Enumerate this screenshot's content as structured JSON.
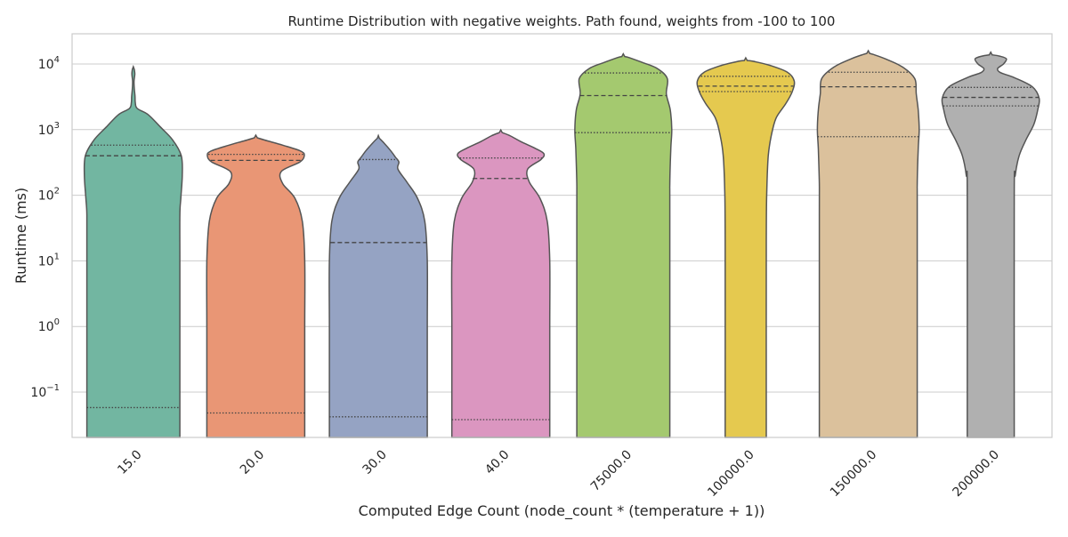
{
  "chart_data": {
    "type": "violin",
    "title": "Runtime Distribution with negative weights. Path found, weights from -100 to 100",
    "xlabel": "Computed Edge Count (node_count * (temperature + 1))",
    "ylabel": "Runtime (ms)",
    "yscale": "log",
    "ylim": [
      0.02,
      27000
    ],
    "yticks": [
      {
        "value": 0.1,
        "base": "10",
        "exp": "−1"
      },
      {
        "value": 1,
        "base": "10",
        "exp": "0"
      },
      {
        "value": 10,
        "base": "10",
        "exp": "1"
      },
      {
        "value": 100,
        "base": "10",
        "exp": "2"
      },
      {
        "value": 1000,
        "base": "10",
        "exp": "3"
      },
      {
        "value": 10000,
        "base": "10",
        "exp": "4"
      }
    ],
    "grid": true,
    "inner": "quartile",
    "categories": [
      "15.0",
      "20.0",
      "30.0",
      "40.0",
      "75000.0",
      "100000.0",
      "150000.0",
      "200000.0"
    ],
    "violins": [
      {
        "category": "15.0",
        "color": "#72b6a1",
        "quartiles": [
          0.058,
          400,
          580
        ],
        "profile": [
          [
            0.02,
            0.95
          ],
          [
            0.1,
            0.95
          ],
          [
            1,
            0.95
          ],
          [
            10,
            0.95
          ],
          [
            50,
            0.95
          ],
          [
            90,
            0.97
          ],
          [
            200,
            1.0
          ],
          [
            400,
            0.98
          ],
          [
            700,
            0.8
          ],
          [
            1100,
            0.55
          ],
          [
            1700,
            0.3
          ],
          [
            2100,
            0.08
          ],
          [
            2600,
            0.04
          ],
          [
            3200,
            0.035
          ],
          [
            4200,
            0.02
          ],
          [
            5500,
            0.015
          ],
          [
            7000,
            0.03
          ],
          [
            8300,
            0.02
          ]
        ]
      },
      {
        "category": "20.0",
        "color": "#e99675",
        "quartiles": [
          0.048,
          340,
          420
        ],
        "profile": [
          [
            0.02,
            1.0
          ],
          [
            0.1,
            1.0
          ],
          [
            1,
            1.0
          ],
          [
            10,
            1.0
          ],
          [
            40,
            0.95
          ],
          [
            90,
            0.8
          ],
          [
            150,
            0.55
          ],
          [
            230,
            0.52
          ],
          [
            320,
            0.9
          ],
          [
            400,
            0.99
          ],
          [
            470,
            0.92
          ],
          [
            580,
            0.55
          ],
          [
            670,
            0.25
          ],
          [
            750,
            0.03
          ]
        ]
      },
      {
        "category": "30.0",
        "color": "#95a3c3",
        "quartiles": [
          0.042,
          19,
          350
        ],
        "profile": [
          [
            0.02,
            1.0
          ],
          [
            0.1,
            1.0
          ],
          [
            1,
            1.0
          ],
          [
            10,
            1.0
          ],
          [
            40,
            0.95
          ],
          [
            90,
            0.8
          ],
          [
            160,
            0.58
          ],
          [
            250,
            0.4
          ],
          [
            320,
            0.42
          ],
          [
            380,
            0.35
          ],
          [
            480,
            0.25
          ],
          [
            620,
            0.12
          ],
          [
            740,
            0.02
          ]
        ]
      },
      {
        "category": "40.0",
        "color": "#db96c0",
        "quartiles": [
          0.038,
          180,
          370
        ],
        "profile": [
          [
            0.02,
            1.0
          ],
          [
            0.1,
            1.0
          ],
          [
            1,
            1.0
          ],
          [
            10,
            1.0
          ],
          [
            40,
            0.95
          ],
          [
            90,
            0.8
          ],
          [
            160,
            0.58
          ],
          [
            250,
            0.55
          ],
          [
            350,
            0.82
          ],
          [
            430,
            0.88
          ],
          [
            520,
            0.7
          ],
          [
            650,
            0.42
          ],
          [
            800,
            0.2
          ],
          [
            900,
            0.03
          ]
        ]
      },
      {
        "category": "75000.0",
        "color": "#a4c96f",
        "quartiles": [
          900,
          3300,
          7300
        ],
        "profile": [
          [
            0.02,
            0.95
          ],
          [
            50,
            0.95
          ],
          [
            150,
            0.95
          ],
          [
            500,
            0.97
          ],
          [
            1000,
            0.99
          ],
          [
            2000,
            0.96
          ],
          [
            3500,
            0.88
          ],
          [
            6000,
            0.9
          ],
          [
            8500,
            0.7
          ],
          [
            10500,
            0.4
          ],
          [
            12500,
            0.12
          ],
          [
            13000,
            0.03
          ]
        ]
      },
      {
        "category": "100000.0",
        "color": "#e5c94f",
        "quartiles": [
          3800,
          4600,
          6500
        ],
        "profile": [
          [
            0.02,
            0.42
          ],
          [
            20,
            0.42
          ],
          [
            120,
            0.43
          ],
          [
            400,
            0.46
          ],
          [
            800,
            0.52
          ],
          [
            1500,
            0.62
          ],
          [
            2500,
            0.82
          ],
          [
            3800,
            0.95
          ],
          [
            5500,
            0.99
          ],
          [
            7500,
            0.85
          ],
          [
            9500,
            0.5
          ],
          [
            11000,
            0.15
          ],
          [
            11300,
            0.03
          ]
        ]
      },
      {
        "category": "150000.0",
        "color": "#dbc19c",
        "quartiles": [
          780,
          4500,
          7500
        ],
        "profile": [
          [
            0.02,
            1.0
          ],
          [
            50,
            1.0
          ],
          [
            150,
            1.0
          ],
          [
            500,
            1.02
          ],
          [
            1000,
            1.04
          ],
          [
            2000,
            1.02
          ],
          [
            3500,
            0.98
          ],
          [
            6000,
            0.95
          ],
          [
            9000,
            0.7
          ],
          [
            12000,
            0.35
          ],
          [
            14000,
            0.1
          ],
          [
            14500,
            0.03
          ]
        ]
      },
      {
        "category": "200000.0",
        "color": "#b0b0b0",
        "quartiles": [
          2300,
          3100,
          4400
        ],
        "profile": [
          [
            0.02,
            0.48
          ],
          [
            100,
            0.48
          ],
          [
            200,
            0.5
          ],
          [
            400,
            0.58
          ],
          [
            700,
            0.72
          ],
          [
            1200,
            0.88
          ],
          [
            2000,
            0.96
          ],
          [
            3000,
            0.99
          ],
          [
            4500,
            0.85
          ],
          [
            6200,
            0.48
          ],
          [
            7400,
            0.2
          ],
          [
            8500,
            0.14
          ],
          [
            10000,
            0.26
          ],
          [
            12000,
            0.32
          ],
          [
            13200,
            0.18
          ],
          [
            13800,
            0.03
          ]
        ]
      }
    ]
  }
}
